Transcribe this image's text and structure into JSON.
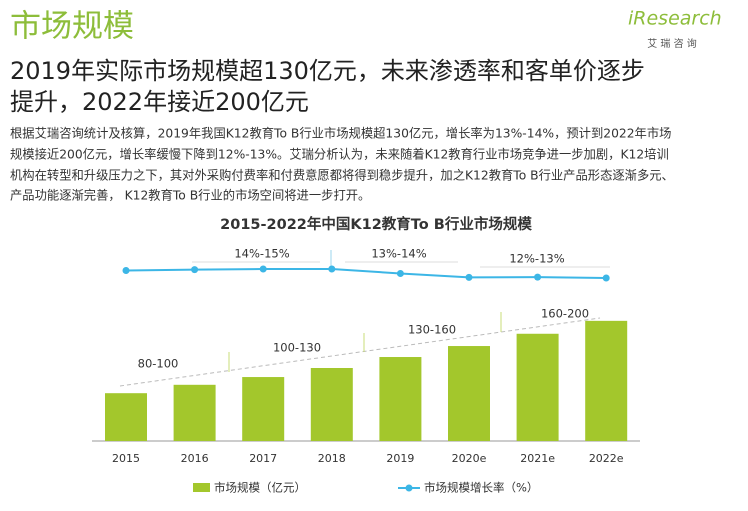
{
  "header": {
    "title": "市场规模",
    "logo": "iResearch",
    "logo_sub": "艾 瑞 咨 询"
  },
  "headline": [
    "2019年实际市场规模超130亿元，未来渗透率和客单价逐步",
    "提升，2022年接近200亿元"
  ],
  "paragraph": [
    "根据艾瑞咨询统计及核算，2019年我国K12教育To  B行业市场规模超130亿元，增长率为13%-14%，预计到2022年市场",
    "规模接近200亿元，增长率缓慢下降到12%-13%。艾瑞分析认为，未来随着K12教育行业市场竞争进一步加剧，K12培训",
    "机构在转型和升级压力之下，其对外采购付费率和付费意愿都将得到稳步提升，加之K12教育To  B行业产品形态逐渐多元、",
    "产品功能逐渐完善，  K12教育To  B行业的市场空间将进一步打开。"
  ],
  "chart_data": {
    "type": "bar-line",
    "title": "2015-2022年中国K12教育To  B行业市场规模",
    "categories": [
      "2015",
      "2016",
      "2017",
      "2018",
      "2019",
      "2020e",
      "2021e",
      "2022e"
    ],
    "series": [
      {
        "name": "市场规模（亿元）",
        "color": "#a3c72c",
        "values": [
          74,
          87,
          99,
          113,
          130,
          147,
          166,
          186
        ]
      },
      {
        "name": "市场规模增长率（%）",
        "color": "#3cb6e6",
        "values": [
          14.5,
          14.8,
          15,
          15,
          13.5,
          12.2,
          12.3,
          12
        ]
      }
    ],
    "range_labels": [
      "80-100",
      "100-130",
      "130-160",
      "160-200"
    ],
    "growth_labels": [
      "14%-15%",
      "13%-14%",
      "12%-13%"
    ]
  }
}
